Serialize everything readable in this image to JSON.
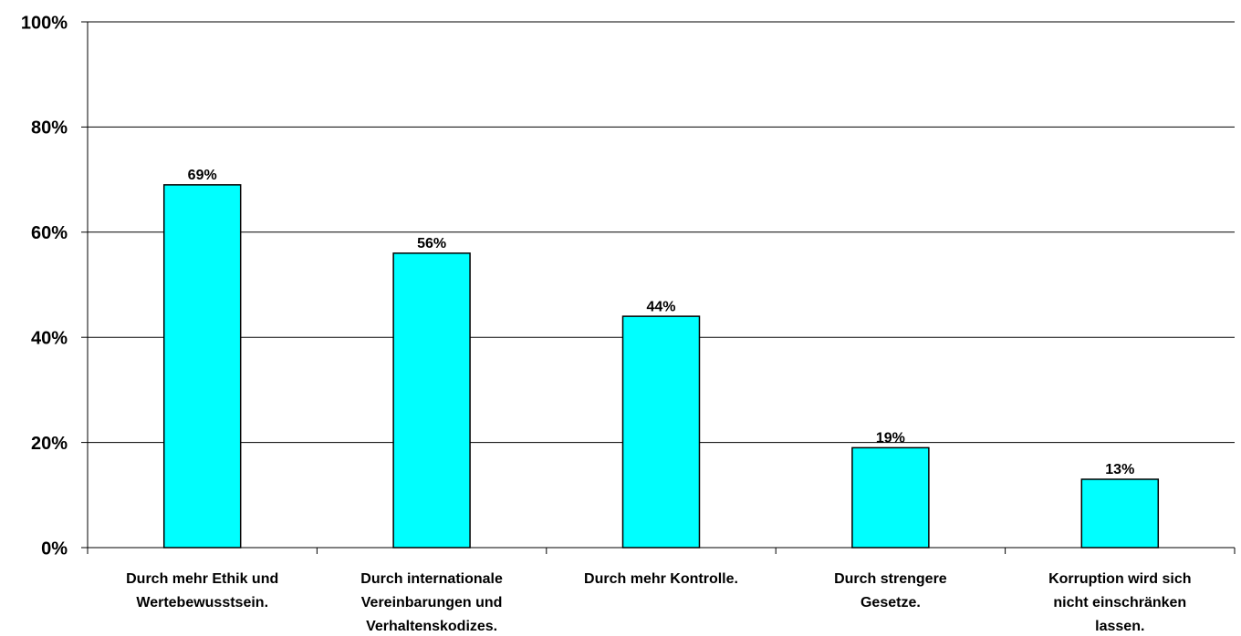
{
  "chart_data": {
    "type": "bar",
    "categories": [
      "Durch mehr Ethik und\nWertebewusstsein.",
      "Durch internationale\nVereinbarungen und\nVerhaltenskodizes.",
      "Durch mehr Kontrolle.",
      "Durch strengere\nGesetze.",
      "Korruption wird sich\nnicht einschränken\nlassen."
    ],
    "values": [
      69,
      56,
      44,
      19,
      13
    ],
    "value_labels": [
      "69%",
      "56%",
      "44%",
      "19%",
      "13%"
    ],
    "color": "#00ffff",
    "ylim": [
      0,
      100
    ],
    "yticks": [
      {
        "value": 0,
        "label": "0%"
      },
      {
        "value": 20,
        "label": "20%"
      },
      {
        "value": 40,
        "label": "40%"
      },
      {
        "value": 60,
        "label": "60%"
      },
      {
        "value": 80,
        "label": "80%"
      },
      {
        "value": 100,
        "label": "100%"
      }
    ],
    "grid": true
  }
}
